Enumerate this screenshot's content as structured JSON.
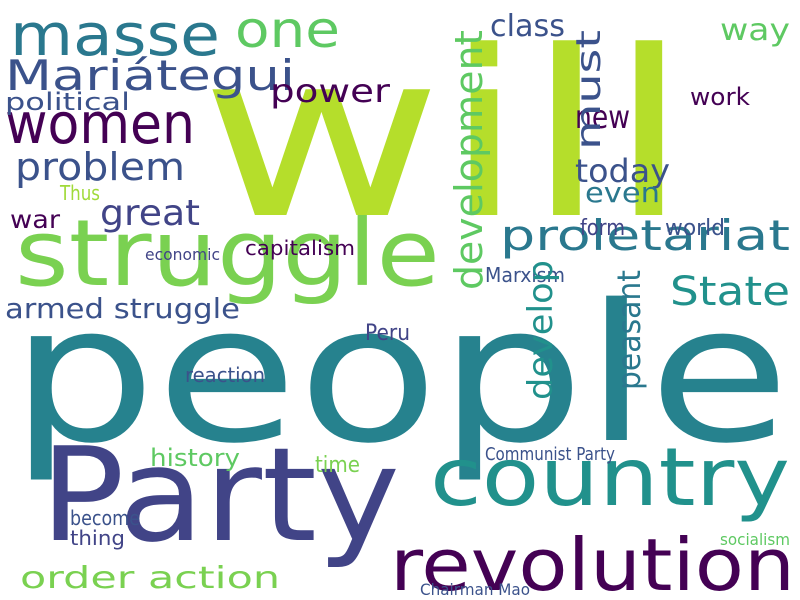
{
  "words": [
    {
      "text": "people",
      "color": "#26828e"
    },
    {
      "text": "will",
      "color": "#b5de2b"
    },
    {
      "text": "Party",
      "color": "#414487"
    },
    {
      "text": "country",
      "color": "#21918c"
    },
    {
      "text": "revolution",
      "color": "#440154"
    },
    {
      "text": "struggle",
      "color": "#7ad151"
    },
    {
      "text": "masse",
      "color": "#2a788e"
    },
    {
      "text": "one",
      "color": "#5ec962"
    },
    {
      "text": "Mariátegui",
      "color": "#3b528b"
    },
    {
      "text": "women",
      "color": "#440154"
    },
    {
      "text": "problem",
      "color": "#3b528b"
    },
    {
      "text": "power",
      "color": "#440154"
    },
    {
      "text": "political",
      "color": "#3b528b"
    },
    {
      "text": "great",
      "color": "#414487"
    },
    {
      "text": "proletariat",
      "color": "#2a788e"
    },
    {
      "text": "State",
      "color": "#21918c"
    },
    {
      "text": "armed struggle",
      "color": "#3b528b"
    },
    {
      "text": "order action",
      "color": "#7ad151"
    },
    {
      "text": "class",
      "color": "#3b528b"
    },
    {
      "text": "way",
      "color": "#5ec962"
    },
    {
      "text": "new",
      "color": "#440154"
    },
    {
      "text": "today",
      "color": "#3b528b"
    },
    {
      "text": "even",
      "color": "#2a788e"
    },
    {
      "text": "history",
      "color": "#5ec962"
    },
    {
      "text": "Communist Party",
      "color": "#3b528b"
    },
    {
      "text": "Peru",
      "color": "#414487"
    },
    {
      "text": "Marxism",
      "color": "#3b528b"
    },
    {
      "text": "war",
      "color": "#440154"
    },
    {
      "text": "Thus",
      "color": "#a0da39"
    },
    {
      "text": "time",
      "color": "#7ad151"
    },
    {
      "text": "development",
      "color": "#5ec962"
    },
    {
      "text": "must",
      "color": "#3b528b"
    },
    {
      "text": "peasant",
      "color": "#2a788e"
    },
    {
      "text": "develop",
      "color": "#21918c"
    },
    {
      "text": "work",
      "color": "#440154"
    },
    {
      "text": "form",
      "color": "#414487"
    },
    {
      "text": "world",
      "color": "#3b528b"
    },
    {
      "text": "reaction",
      "color": "#3b528b"
    },
    {
      "text": "capitalism",
      "color": "#440154"
    },
    {
      "text": "economic",
      "color": "#414487"
    },
    {
      "text": "Chairman Mao",
      "color": "#3b528b"
    },
    {
      "text": "socialism",
      "color": "#5ec962"
    },
    {
      "text": "thing",
      "color": "#414487"
    },
    {
      "text": "become",
      "color": "#3b528b"
    }
  ]
}
